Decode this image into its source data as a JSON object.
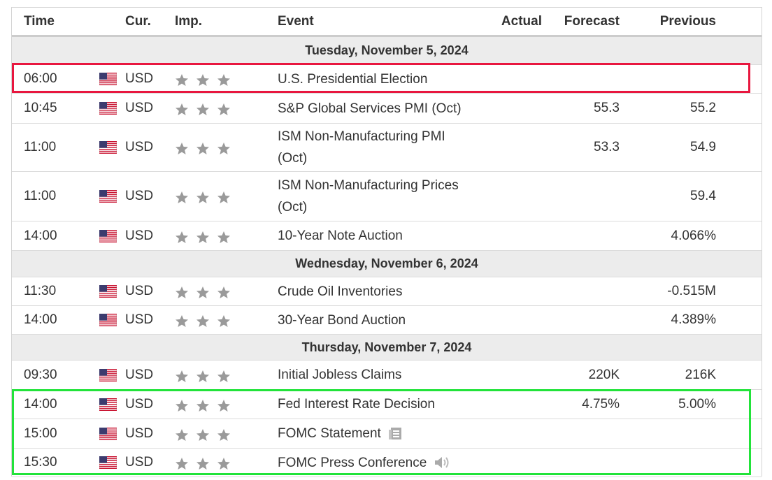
{
  "table": {
    "headers": [
      "Time",
      "Cur.",
      "Imp.",
      "Event",
      "Actual",
      "Forecast",
      "Previous"
    ],
    "sections": [
      {
        "title": "Tuesday, November 5, 2024",
        "rows": [
          {
            "time": "06:00",
            "currency": "USD",
            "event": "U.S. Presidential Election"
          },
          {
            "time": "10:45",
            "currency": "USD",
            "event": "S&P Global Services PMI (Oct)",
            "forecast": "55.3",
            "previous": "55.2"
          },
          {
            "time": "11:00",
            "currency": "USD",
            "event": "ISM Non-Manufacturing PMI (Oct)",
            "forecast": "53.3",
            "previous": "54.9"
          },
          {
            "time": "11:00",
            "currency": "USD",
            "event": "ISM Non-Manufacturing Prices (Oct)",
            "previous": "59.4"
          },
          {
            "time": "14:00",
            "currency": "USD",
            "event": "10-Year Note Auction",
            "previous": "4.066%"
          }
        ]
      },
      {
        "title": "Wednesday, November 6, 2024",
        "rows": [
          {
            "time": "11:30",
            "currency": "USD",
            "event": "Crude Oil Inventories",
            "previous": "-0.515M"
          },
          {
            "time": "14:00",
            "currency": "USD",
            "event": "30-Year Bond Auction",
            "previous": "4.389%"
          }
        ]
      },
      {
        "title": "Thursday, November 7, 2024",
        "rows": [
          {
            "time": "09:30",
            "currency": "USD",
            "event": "Initial Jobless Claims",
            "forecast": "220K",
            "previous": "216K"
          },
          {
            "time": "14:00",
            "currency": "USD",
            "event": "Fed Interest Rate Decision",
            "forecast": "4.75%",
            "previous": "5.00%"
          },
          {
            "time": "15:00",
            "currency": "USD",
            "event": "FOMC Statement"
          },
          {
            "time": "15:30",
            "currency": "USD",
            "event": "FOMC Press Conference"
          }
        ]
      }
    ]
  }
}
